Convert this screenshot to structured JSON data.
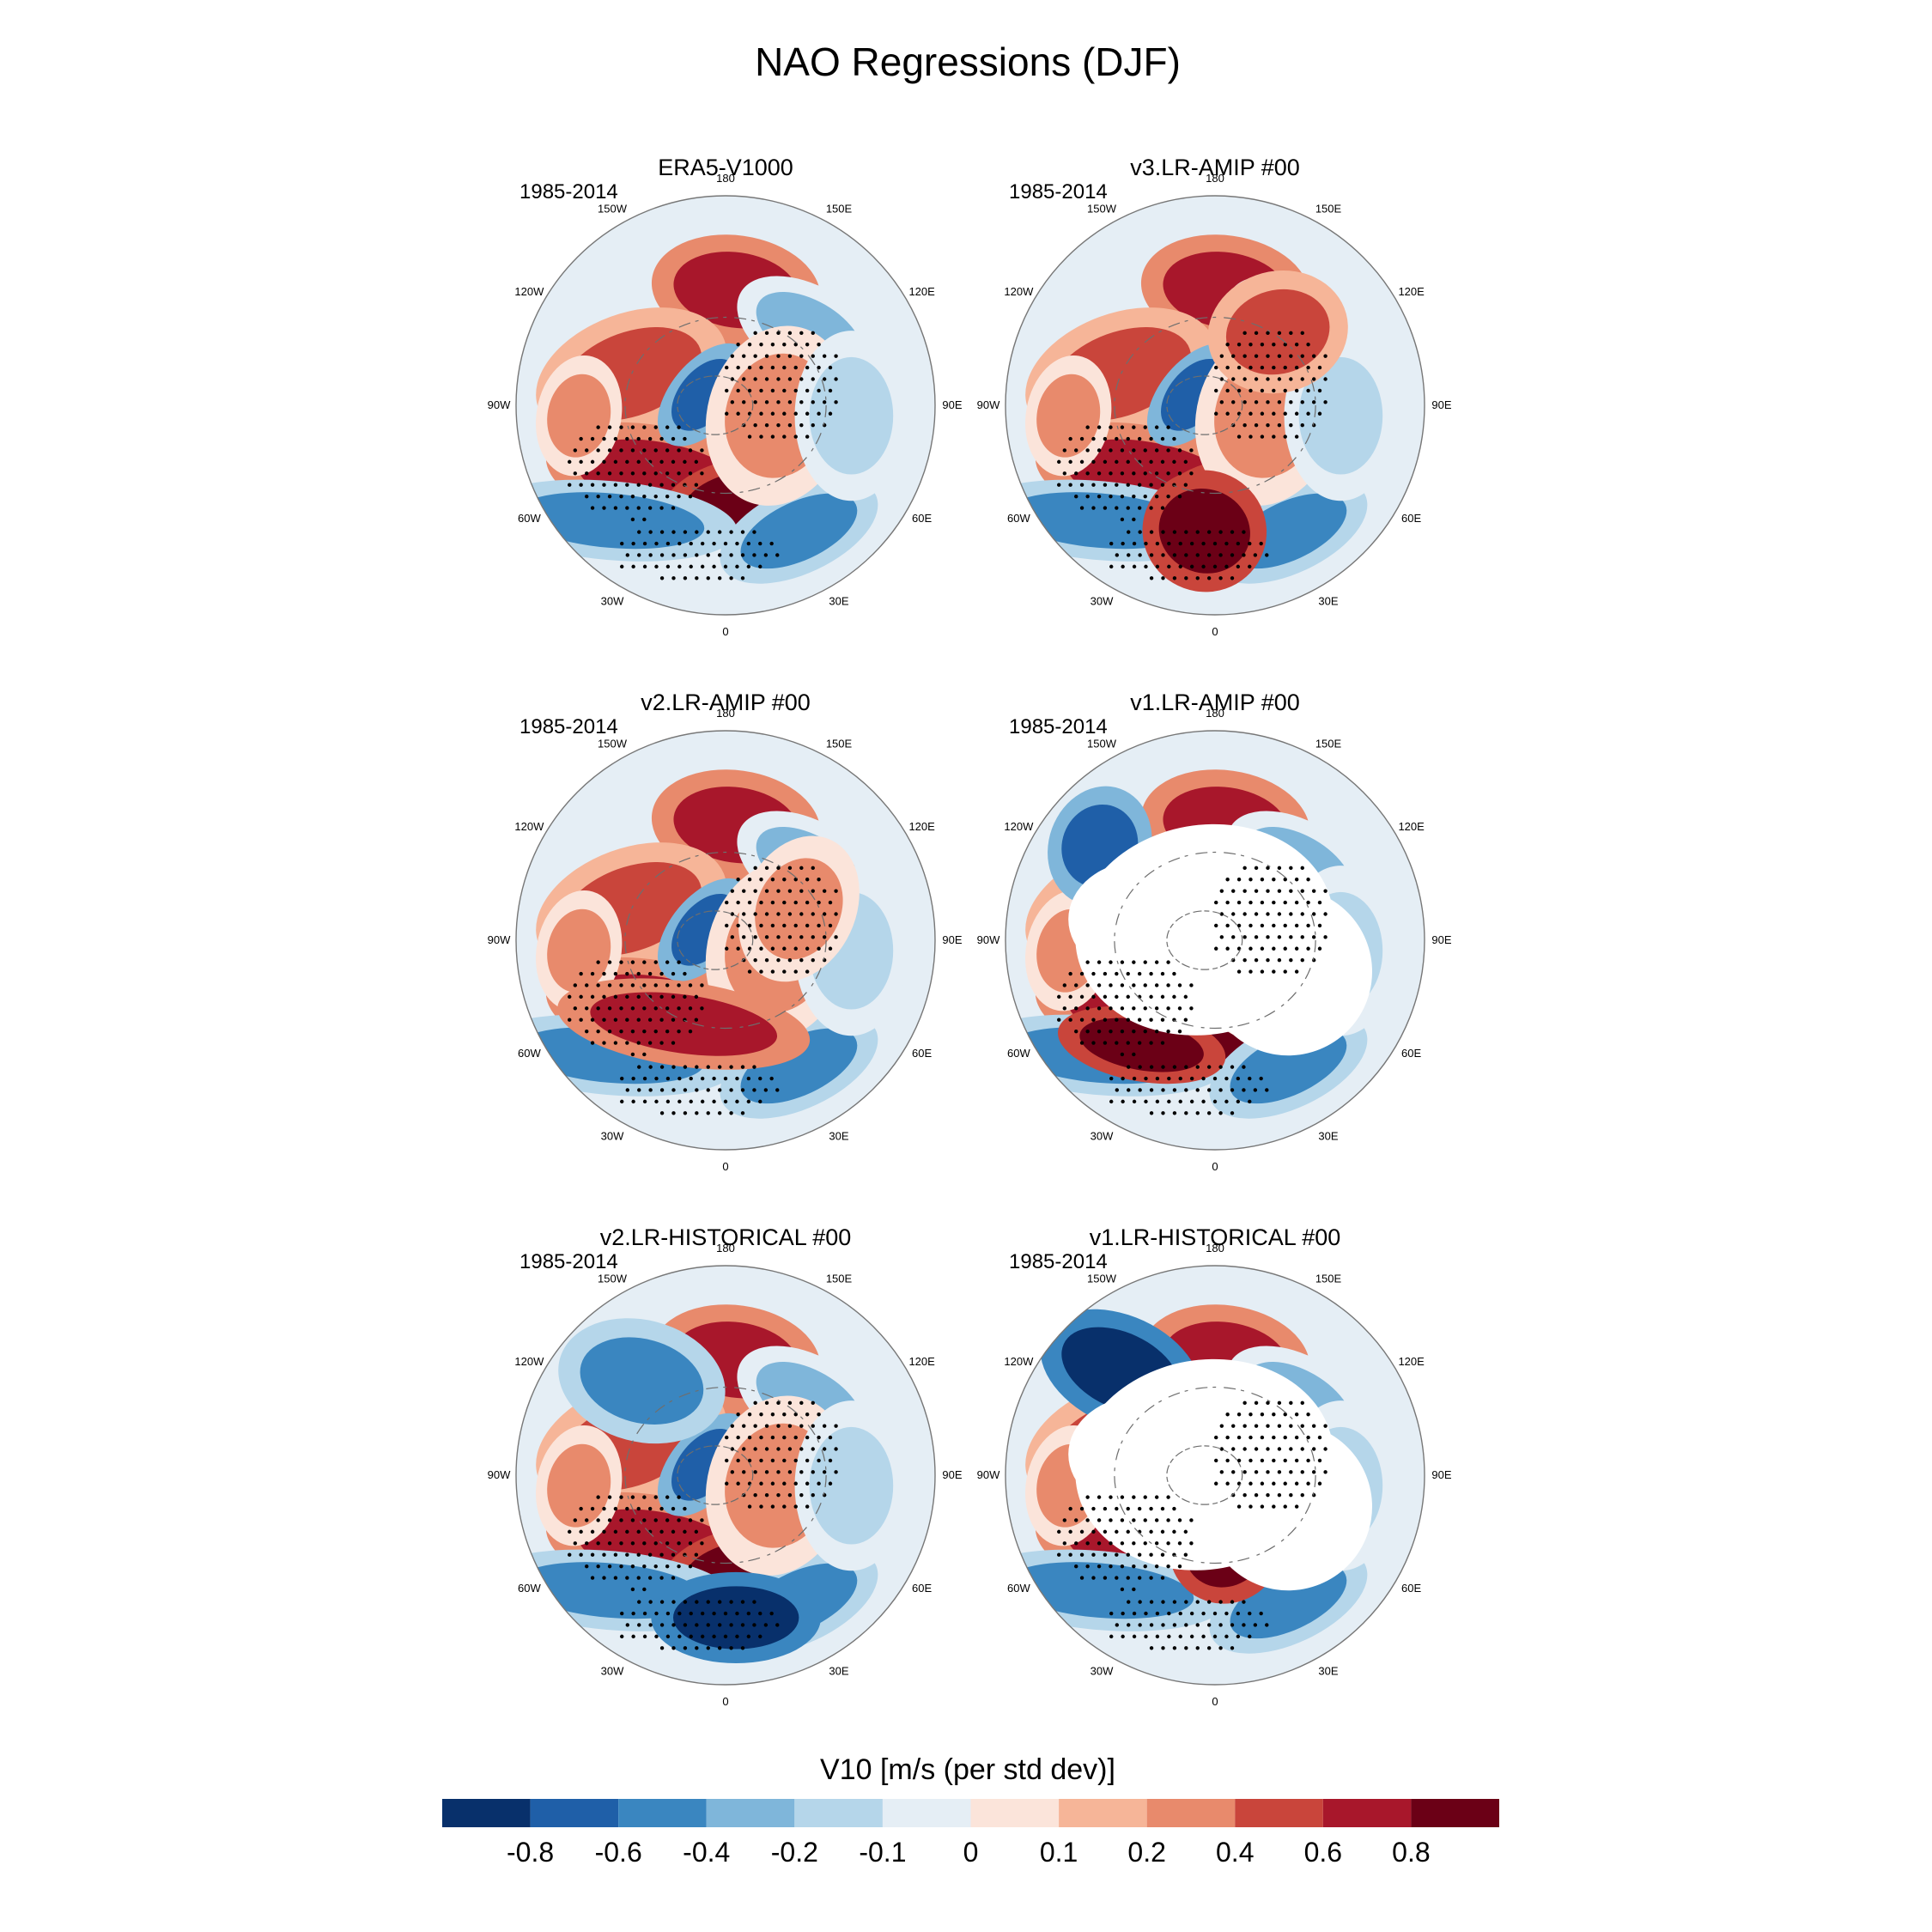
{
  "figure": {
    "title": "NAO Regressions (DJF)",
    "period": "1985-2014",
    "panels": [
      {
        "id": "era5",
        "title": "ERA5-V1000",
        "missing_land": false
      },
      {
        "id": "v3amip",
        "title": "v3.LR-AMIP  #00",
        "missing_land": false
      },
      {
        "id": "v2amip",
        "title": "v2.LR-AMIP  #00",
        "missing_land": false
      },
      {
        "id": "v1amip",
        "title": "v1.LR-AMIP  #00",
        "missing_land": true
      },
      {
        "id": "v2hist",
        "title": "v2.LR-HISTORICAL  #00",
        "missing_land": false
      },
      {
        "id": "v1hist",
        "title": "v1.LR-HISTORICAL  #00",
        "missing_land": true
      }
    ],
    "longitude_labels": [
      "180",
      "150E",
      "120E",
      "90E",
      "60E",
      "30E",
      "0",
      "30W",
      "60W",
      "90W",
      "120W",
      "150W"
    ],
    "colorbar": {
      "title": "V10 [m/s (per std dev)]",
      "colors": [
        "#08306b",
        "#1f5fa8",
        "#3a86c0",
        "#7fb6da",
        "#b5d6ea",
        "#e5eef5",
        "#fbe4da",
        "#f6b598",
        "#e88a6c",
        "#c9453b",
        "#a8172b",
        "#6b0016"
      ],
      "tick_labels": [
        "-0.8",
        "-0.6",
        "-0.4",
        "-0.2",
        "-0.1",
        "0",
        "0.1",
        "0.2",
        "0.4",
        "0.6",
        "0.8"
      ]
    }
  }
}
